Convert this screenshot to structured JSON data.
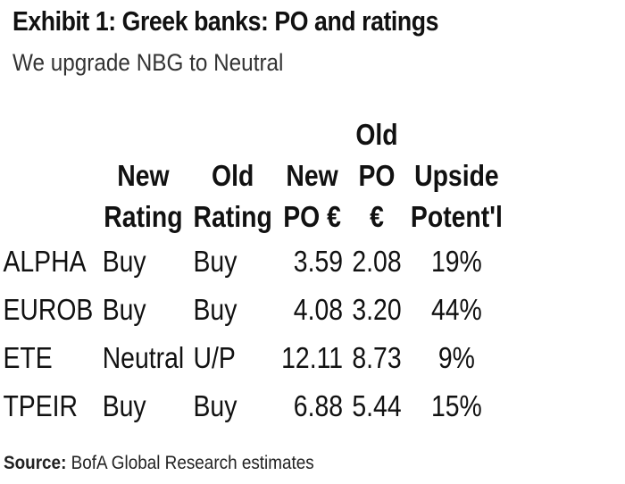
{
  "exhibit": {
    "title": "Exhibit 1: Greek banks: PO and ratings",
    "subtitle": "We upgrade NBG to Neutral"
  },
  "table": {
    "headers": [
      [
        "",
        "",
        ""
      ],
      [
        "",
        "New",
        "Rating"
      ],
      [
        "",
        "Old",
        "Rating"
      ],
      [
        "",
        "New",
        "PO €"
      ],
      [
        "Old",
        "PO",
        "€"
      ],
      [
        "",
        "Upside",
        "Potent'l"
      ]
    ],
    "rows": [
      [
        "ALPHA",
        "Buy",
        "Buy",
        "3.59",
        "2.08",
        "19%"
      ],
      [
        "EUROB",
        "Buy",
        "Buy",
        "4.08",
        "3.20",
        "44%"
      ],
      [
        "ETE",
        "Neutral",
        "U/P",
        "12.11",
        "8.73",
        "9%"
      ],
      [
        "TPEIR",
        "Buy",
        "Buy",
        "6.88",
        "5.44",
        "15%"
      ]
    ]
  },
  "footer": {
    "source_label": "Source:",
    "source_text": " BofA Global Research estimates"
  }
}
